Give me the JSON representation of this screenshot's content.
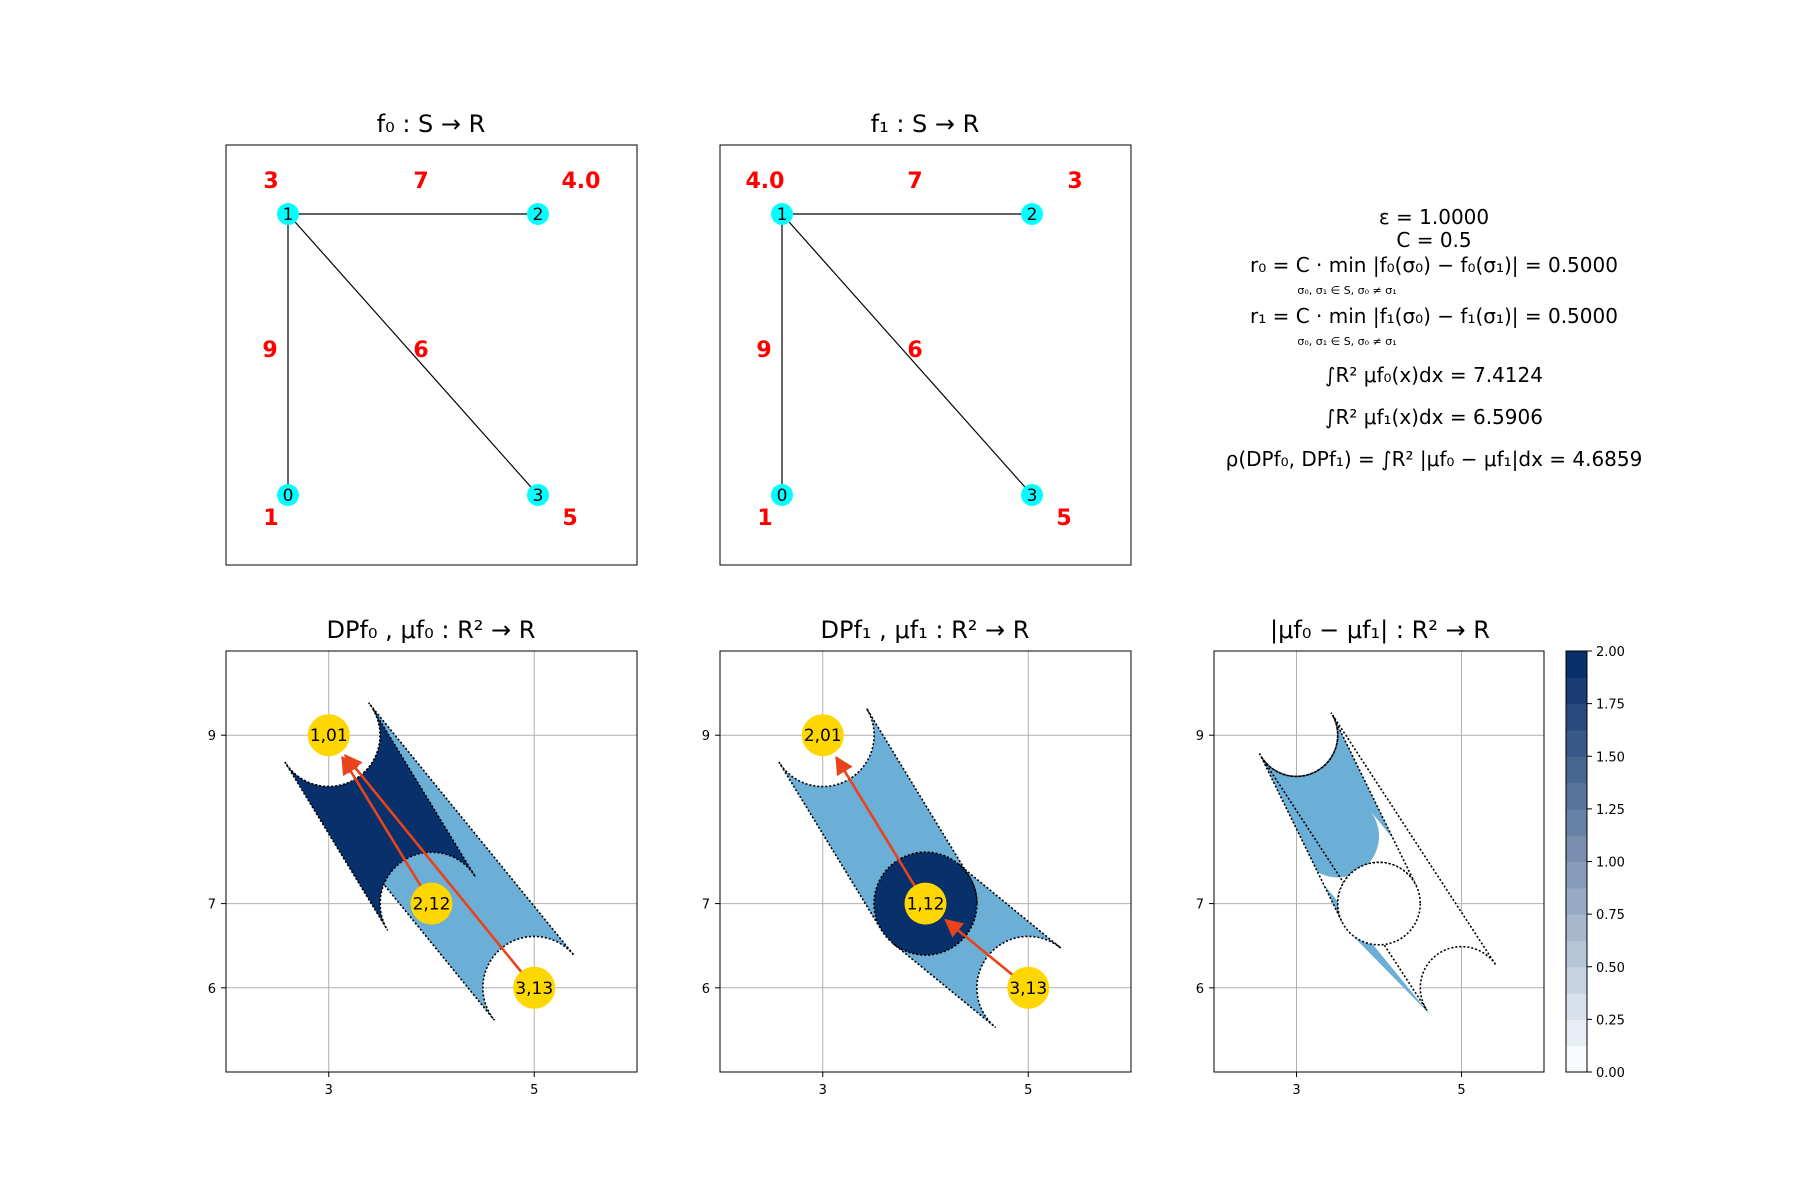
{
  "titles": {
    "f0": "f₀ : S → R",
    "f1": "f₁ : S → R",
    "dp0": "DPf₀ ,   μf₀ : R² → R",
    "dp1": "DPf₁ ,   μf₁ : R² → R",
    "diff": "|μf₀ − μf₁| : R² → R"
  },
  "formulas": {
    "eps": "ε = 1.0000",
    "c": "C = 0.5",
    "r0": "r₀ = C · min |f₀(σ₀) − f₀(σ₁)| = 0.5000",
    "r0_sub": "σ₀, σ₁ ∈ S, σ₀ ≠ σ₁",
    "r1": "r₁ = C · min |f₁(σ₀) − f₁(σ₁)| = 0.5000",
    "r1_sub": "σ₀, σ₁ ∈ S, σ₀ ≠ σ₁",
    "int0": "∫R² μf₀(x)dx = 7.4124",
    "int1": "∫R² μf₁(x)dx = 6.5906",
    "rho": "ρ(DPf₀, DPf₁) = ∫R² |μf₀ − μf₁|dx = 4.6859"
  },
  "colors": {
    "node_fill": "#00ffff",
    "function_value_text": "#ff0000",
    "point_fill": "#ffd700",
    "arrow": "#e8431b",
    "region_dark": "#08306b",
    "region_mid": "#6baed6",
    "grid": "#b0b0b0"
  },
  "chart_data": [
    {
      "type": "graph",
      "panel": "f0",
      "title": "f₀ : S → R",
      "nodes": [
        {
          "id": "0",
          "value": "1"
        },
        {
          "id": "1",
          "value": "3"
        },
        {
          "id": "2",
          "value": "4.0"
        },
        {
          "id": "3",
          "value": "5"
        }
      ],
      "edges": [
        {
          "from": "1",
          "to": "2",
          "value": "7"
        },
        {
          "from": "1",
          "to": "0",
          "value": "9"
        },
        {
          "from": "1",
          "to": "3",
          "value": "6"
        }
      ]
    },
    {
      "type": "graph",
      "panel": "f1",
      "title": "f₁ : S → R",
      "nodes": [
        {
          "id": "0",
          "value": "1"
        },
        {
          "id": "1",
          "value": "4.0"
        },
        {
          "id": "2",
          "value": "3"
        },
        {
          "id": "3",
          "value": "5"
        }
      ],
      "edges": [
        {
          "from": "1",
          "to": "2",
          "value": "7"
        },
        {
          "from": "1",
          "to": "0",
          "value": "9"
        },
        {
          "from": "1",
          "to": "3",
          "value": "6"
        }
      ]
    },
    {
      "type": "scatter",
      "panel": "dp0",
      "title": "DPf₀ ,   μf₀ : R² → R",
      "xlim": [
        2,
        6
      ],
      "ylim": [
        5,
        10
      ],
      "xticks": [
        3,
        5
      ],
      "yticks": [
        6,
        7,
        9
      ],
      "grid": true,
      "points": [
        {
          "label": "1,01",
          "x": 3,
          "y": 9
        },
        {
          "label": "2,12",
          "x": 4,
          "y": 7
        },
        {
          "label": "3,13",
          "x": 5,
          "y": 6
        }
      ],
      "arrows": [
        {
          "from": [
            4,
            7
          ],
          "to": [
            3,
            9
          ]
        },
        {
          "from": [
            5,
            6
          ],
          "to": [
            3,
            9
          ]
        }
      ],
      "regions": [
        {
          "from": [
            3,
            9
          ],
          "to": [
            5,
            6
          ],
          "radius": 0.5,
          "value": 1
        },
        {
          "from": [
            3,
            9
          ],
          "to": [
            4,
            7
          ],
          "radius": 0.5,
          "value": 2
        }
      ]
    },
    {
      "type": "scatter",
      "panel": "dp1",
      "title": "DPf₁ ,   μf₁ : R² → R",
      "xlim": [
        2,
        6
      ],
      "ylim": [
        5,
        10
      ],
      "xticks": [
        3,
        5
      ],
      "yticks": [
        6,
        7,
        9
      ],
      "grid": true,
      "points": [
        {
          "label": "2,01",
          "x": 3,
          "y": 9
        },
        {
          "label": "1,12",
          "x": 4,
          "y": 7
        },
        {
          "label": "3,13",
          "x": 5,
          "y": 6
        }
      ],
      "arrows": [
        {
          "from": [
            4,
            7
          ],
          "to": [
            3,
            9
          ]
        },
        {
          "from": [
            5,
            6
          ],
          "to": [
            4,
            7
          ]
        }
      ],
      "regions": [
        {
          "from": [
            3,
            9
          ],
          "to": [
            4,
            7
          ],
          "radius": 0.5,
          "value": 1
        },
        {
          "from": [
            4,
            7
          ],
          "to": [
            5,
            6
          ],
          "radius": 0.5,
          "value": 1
        },
        {
          "center": [
            4,
            7
          ],
          "radius": 0.5,
          "value": 2
        }
      ]
    },
    {
      "type": "heatmap",
      "panel": "diff",
      "title": "|μf₀ − μf₁| : R² → R",
      "xlim": [
        2,
        6
      ],
      "ylim": [
        5,
        10
      ],
      "xticks": [
        3,
        5
      ],
      "yticks": [
        6,
        7,
        9
      ],
      "grid": true,
      "regions_value_1": "union of μf₀ and μf₁ supports minus the disc at (4,7) radius 0.5",
      "colorbar": {
        "min": 0.0,
        "max": 2.0,
        "ticks": [
          "0.00",
          "0.25",
          "0.50",
          "0.75",
          "1.00",
          "1.25",
          "1.50",
          "1.75",
          "2.00"
        ]
      }
    }
  ]
}
